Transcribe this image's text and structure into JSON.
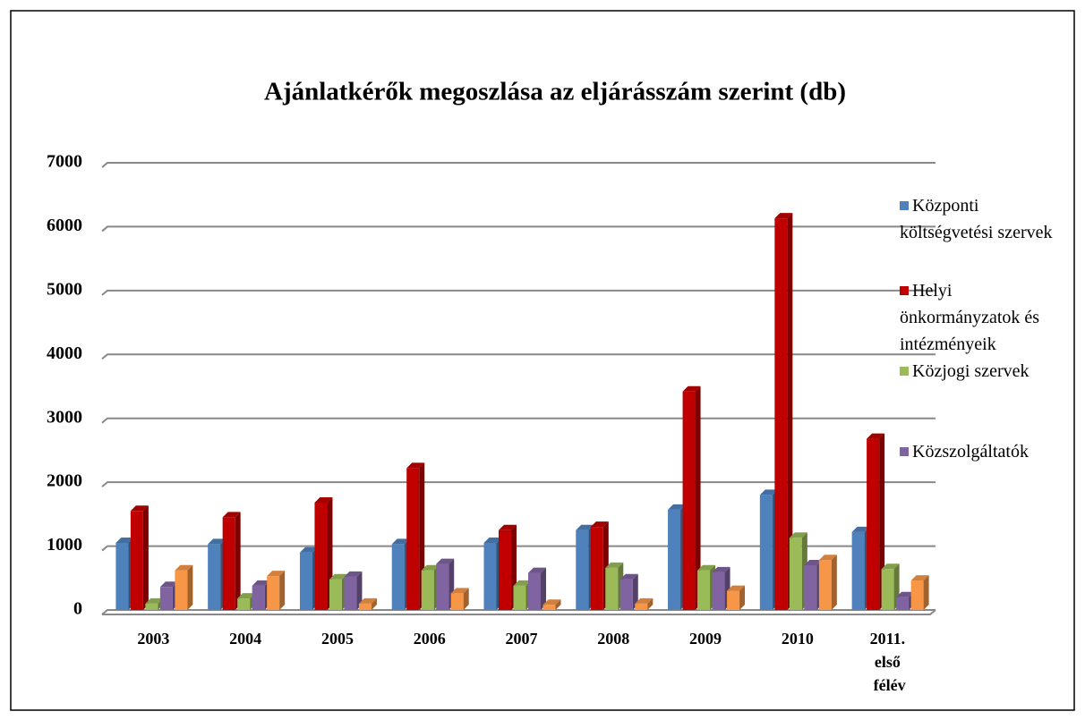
{
  "chart_data": {
    "type": "bar3d",
    "title": "Ajánlatkérők megoszlása az eljárásszám szerint (db)",
    "categories": [
      "2003",
      "2004",
      "2005",
      "2006",
      "2007",
      "2008",
      "2009",
      "2010",
      "2011. első félév"
    ],
    "series": [
      {
        "name": "Központi költségvetési szervek",
        "color": "#4f81bd",
        "values": [
          1050,
          1030,
          900,
          1030,
          1050,
          1250,
          1570,
          1800,
          1220
        ]
      },
      {
        "name": "Helyi önkormányzatok és intézményeik",
        "color": "#c00000",
        "values": [
          1550,
          1450,
          1680,
          2220,
          1250,
          1300,
          3420,
          6130,
          2680
        ]
      },
      {
        "name": "Közjogi szervek",
        "color": "#9bbb59",
        "values": [
          100,
          180,
          480,
          620,
          380,
          660,
          620,
          1130,
          640
        ]
      },
      {
        "name": "Közszolgáltatók",
        "color": "#8064a2",
        "values": [
          360,
          380,
          520,
          720,
          580,
          480,
          590,
          700,
          200
        ]
      },
      {
        "color": "#f79646",
        "values": [
          620,
          530,
          100,
          260,
          80,
          100,
          300,
          780,
          460
        ]
      }
    ],
    "ylim": [
      0,
      7000
    ],
    "yticks": [
      0,
      1000,
      2000,
      3000,
      4000,
      5000,
      6000,
      7000
    ],
    "grid": true
  }
}
